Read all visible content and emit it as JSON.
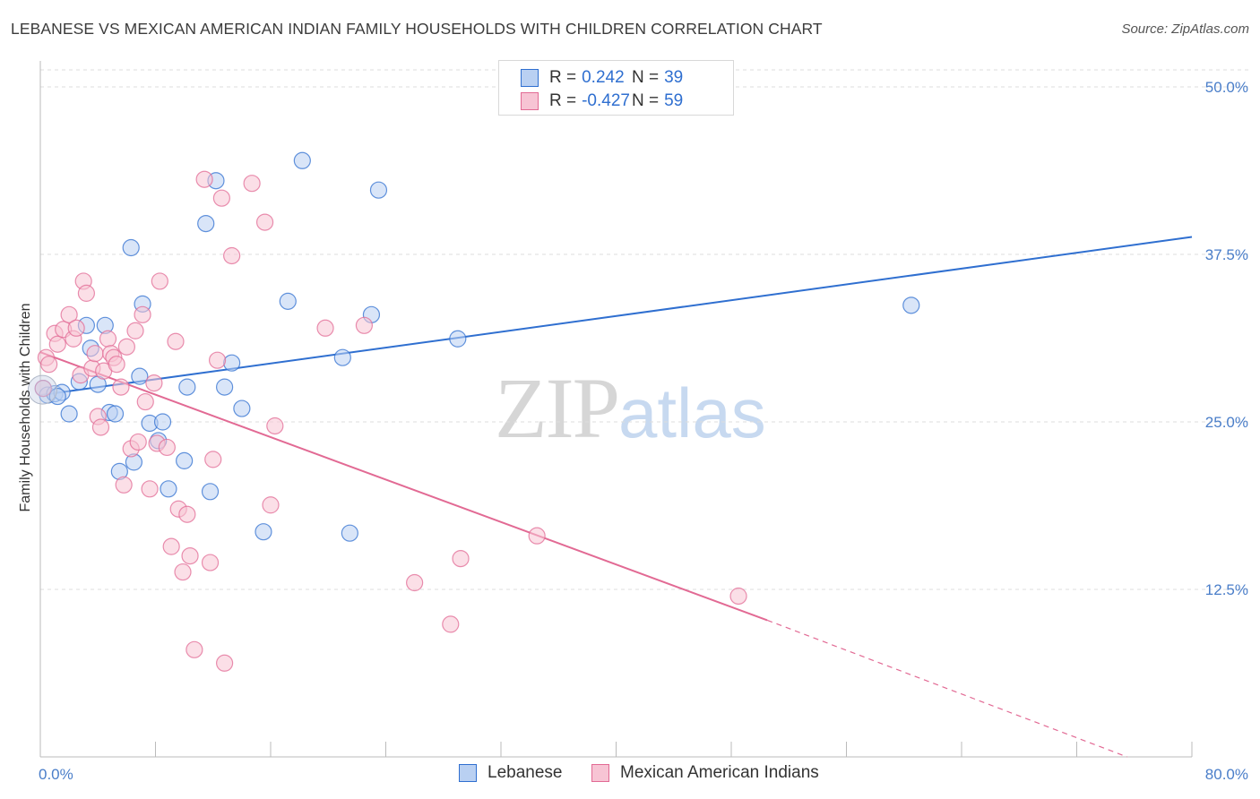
{
  "title": "LEBANESE VS MEXICAN AMERICAN INDIAN FAMILY HOUSEHOLDS WITH CHILDREN CORRELATION CHART",
  "source": "Source: ZipAtlas.com",
  "watermark": {
    "zip": "ZIP",
    "atlas": "atlas"
  },
  "legend": {
    "lebanese": {
      "r_label": "R =",
      "r_value": "0.242",
      "n_label": "N =",
      "n_value": "39"
    },
    "mexican": {
      "r_label": "R =",
      "r_value": "-0.427",
      "n_label": "N =",
      "n_value": "59"
    }
  },
  "bottom_legend": {
    "lebanese": "Lebanese",
    "mexican": "Mexican American Indians"
  },
  "chart_data": {
    "type": "scatter",
    "title": "LEBANESE VS MEXICAN AMERICAN INDIAN FAMILY HOUSEHOLDS WITH CHILDREN CORRELATION CHART",
    "xlabel": "",
    "ylabel": "Family Households with Children",
    "xlim": [
      0,
      80
    ],
    "ylim": [
      0,
      52
    ],
    "x_edge_labels": [
      "0.0%",
      "80.0%"
    ],
    "y_ticks": [
      {
        "value": 12.5,
        "label": "12.5%"
      },
      {
        "value": 25.0,
        "label": "25.0%"
      },
      {
        "value": 37.5,
        "label": "37.5%"
      },
      {
        "value": 50.0,
        "label": "50.0%"
      }
    ],
    "grid": true,
    "colors": {
      "lebanese": "#2f6fd0",
      "lebanese_fill": "#b9d0f2",
      "mexican": "#e26a94",
      "mexican_fill": "#f7c4d4"
    },
    "series": [
      {
        "name": "Lebanese",
        "color": "#2f6fd0",
        "trend": {
          "x": [
            0,
            80
          ],
          "y": [
            27.0,
            38.8
          ],
          "dashed_from": null
        },
        "points": [
          [
            0.2,
            27.5
          ],
          [
            0.5,
            27.0
          ],
          [
            1.0,
            27.1
          ],
          [
            1.5,
            27.2
          ],
          [
            2.0,
            25.6
          ],
          [
            2.7,
            28.0
          ],
          [
            3.2,
            32.2
          ],
          [
            3.5,
            30.5
          ],
          [
            4.0,
            27.8
          ],
          [
            4.5,
            32.2
          ],
          [
            4.8,
            25.7
          ],
          [
            5.2,
            25.6
          ],
          [
            5.5,
            21.3
          ],
          [
            6.3,
            38.0
          ],
          [
            6.5,
            22.0
          ],
          [
            6.9,
            28.4
          ],
          [
            7.1,
            33.8
          ],
          [
            7.6,
            24.9
          ],
          [
            8.2,
            23.6
          ],
          [
            8.5,
            25.0
          ],
          [
            8.9,
            20.0
          ],
          [
            10.0,
            22.1
          ],
          [
            10.2,
            27.6
          ],
          [
            11.5,
            39.8
          ],
          [
            11.8,
            19.8
          ],
          [
            12.2,
            43.0
          ],
          [
            12.8,
            27.6
          ],
          [
            13.3,
            29.4
          ],
          [
            14.0,
            26.0
          ],
          [
            15.5,
            16.8
          ],
          [
            17.2,
            34.0
          ],
          [
            18.2,
            44.5
          ],
          [
            21.0,
            29.8
          ],
          [
            21.5,
            16.7
          ],
          [
            23.0,
            33.0
          ],
          [
            23.5,
            42.3
          ],
          [
            29.0,
            31.2
          ],
          [
            60.5,
            33.7
          ],
          [
            1.2,
            26.9
          ]
        ]
      },
      {
        "name": "Mexican American Indians",
        "color": "#e26a94",
        "trend": {
          "x": [
            0,
            50.5
          ],
          "y": [
            30.2,
            10.2
          ],
          "dashed_to": {
            "x": 75.5,
            "y": 0.0
          }
        },
        "points": [
          [
            0.2,
            27.5
          ],
          [
            0.4,
            29.8
          ],
          [
            0.6,
            29.3
          ],
          [
            1.0,
            31.6
          ],
          [
            1.2,
            30.8
          ],
          [
            1.6,
            31.9
          ],
          [
            2.0,
            33.0
          ],
          [
            2.3,
            31.2
          ],
          [
            2.5,
            32.0
          ],
          [
            2.8,
            28.5
          ],
          [
            3.0,
            35.5
          ],
          [
            3.2,
            34.6
          ],
          [
            3.6,
            29.0
          ],
          [
            3.8,
            30.1
          ],
          [
            4.0,
            25.4
          ],
          [
            4.2,
            24.6
          ],
          [
            4.4,
            28.8
          ],
          [
            4.7,
            31.2
          ],
          [
            4.9,
            30.1
          ],
          [
            5.1,
            29.8
          ],
          [
            5.3,
            29.3
          ],
          [
            5.6,
            27.6
          ],
          [
            5.8,
            20.3
          ],
          [
            6.0,
            30.6
          ],
          [
            6.3,
            23.0
          ],
          [
            6.6,
            31.8
          ],
          [
            6.8,
            23.5
          ],
          [
            7.1,
            33.0
          ],
          [
            7.3,
            26.5
          ],
          [
            7.6,
            20.0
          ],
          [
            7.9,
            27.9
          ],
          [
            8.1,
            23.4
          ],
          [
            8.3,
            35.5
          ],
          [
            8.8,
            23.1
          ],
          [
            9.1,
            15.7
          ],
          [
            9.4,
            31.0
          ],
          [
            9.6,
            18.5
          ],
          [
            9.9,
            13.8
          ],
          [
            10.2,
            18.1
          ],
          [
            10.4,
            15.0
          ],
          [
            10.7,
            8.0
          ],
          [
            11.4,
            43.1
          ],
          [
            11.8,
            14.5
          ],
          [
            12.0,
            22.2
          ],
          [
            12.3,
            29.6
          ],
          [
            12.6,
            41.7
          ],
          [
            12.8,
            7.0
          ],
          [
            13.3,
            37.4
          ],
          [
            14.7,
            42.8
          ],
          [
            15.6,
            39.9
          ],
          [
            16.0,
            18.8
          ],
          [
            16.3,
            24.7
          ],
          [
            19.8,
            32.0
          ],
          [
            22.5,
            32.2
          ],
          [
            26.0,
            13.0
          ],
          [
            28.5,
            9.9
          ],
          [
            29.2,
            14.8
          ],
          [
            34.5,
            16.5
          ],
          [
            48.5,
            12.0
          ]
        ]
      }
    ]
  }
}
